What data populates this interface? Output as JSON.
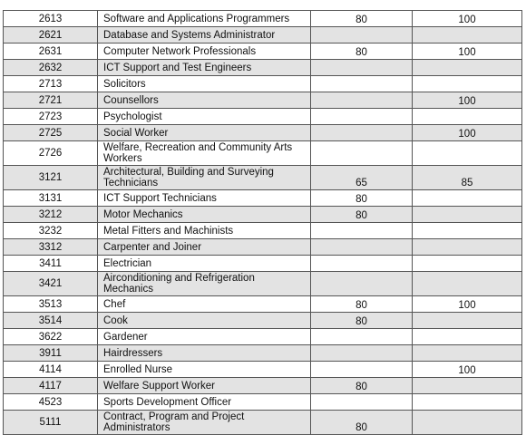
{
  "rows": [
    {
      "code": "2613",
      "occupation": "Software and Applications Programmers",
      "col1": "80",
      "col2": "100"
    },
    {
      "code": "2621",
      "occupation": "Database and Systems Administrator",
      "col1": "",
      "col2": ""
    },
    {
      "code": "2631",
      "occupation": "Computer Network Professionals",
      "col1": "80",
      "col2": "100"
    },
    {
      "code": "2632",
      "occupation": "ICT Support and Test Engineers",
      "col1": "",
      "col2": ""
    },
    {
      "code": "2713",
      "occupation": "Solicitors",
      "col1": "",
      "col2": ""
    },
    {
      "code": "2721",
      "occupation": "Counsellors",
      "col1": "",
      "col2": "100"
    },
    {
      "code": "2723",
      "occupation": "Psychologist",
      "col1": "",
      "col2": ""
    },
    {
      "code": "2725",
      "occupation": "Social Worker",
      "col1": "",
      "col2": "100"
    },
    {
      "code": "2726",
      "occupation": "Welfare, Recreation and Community Arts Workers",
      "col1": "",
      "col2": ""
    },
    {
      "code": "3121",
      "occupation": "Architectural, Building and Surveying Technicians",
      "col1": "65",
      "col2": "85"
    },
    {
      "code": "3131",
      "occupation": "ICT Support Technicians",
      "col1": "80",
      "col2": ""
    },
    {
      "code": "3212",
      "occupation": "Motor Mechanics",
      "col1": "80",
      "col2": ""
    },
    {
      "code": "3232",
      "occupation": "Metal Fitters and Machinists",
      "col1": "",
      "col2": ""
    },
    {
      "code": "3312",
      "occupation": "Carpenter and Joiner",
      "col1": "",
      "col2": ""
    },
    {
      "code": "3411",
      "occupation": "Electrician",
      "col1": "",
      "col2": ""
    },
    {
      "code": "3421",
      "occupation": "Airconditioning and Refrigeration Mechanics",
      "col1": "",
      "col2": ""
    },
    {
      "code": "3513",
      "occupation": "Chef",
      "col1": "80",
      "col2": "100"
    },
    {
      "code": "3514",
      "occupation": "Cook",
      "col1": "80",
      "col2": ""
    },
    {
      "code": "3622",
      "occupation": "Gardener",
      "col1": "",
      "col2": ""
    },
    {
      "code": "3911",
      "occupation": "Hairdressers",
      "col1": "",
      "col2": ""
    },
    {
      "code": "4114",
      "occupation": "Enrolled Nurse",
      "col1": "",
      "col2": "100"
    },
    {
      "code": "4117",
      "occupation": "Welfare Support Worker",
      "col1": "80",
      "col2": ""
    },
    {
      "code": "4523",
      "occupation": "Sports Development Officer",
      "col1": "",
      "col2": ""
    },
    {
      "code": "5111",
      "occupation": "Contract, Program and Project Administrators",
      "col1": "80",
      "col2": ""
    }
  ]
}
